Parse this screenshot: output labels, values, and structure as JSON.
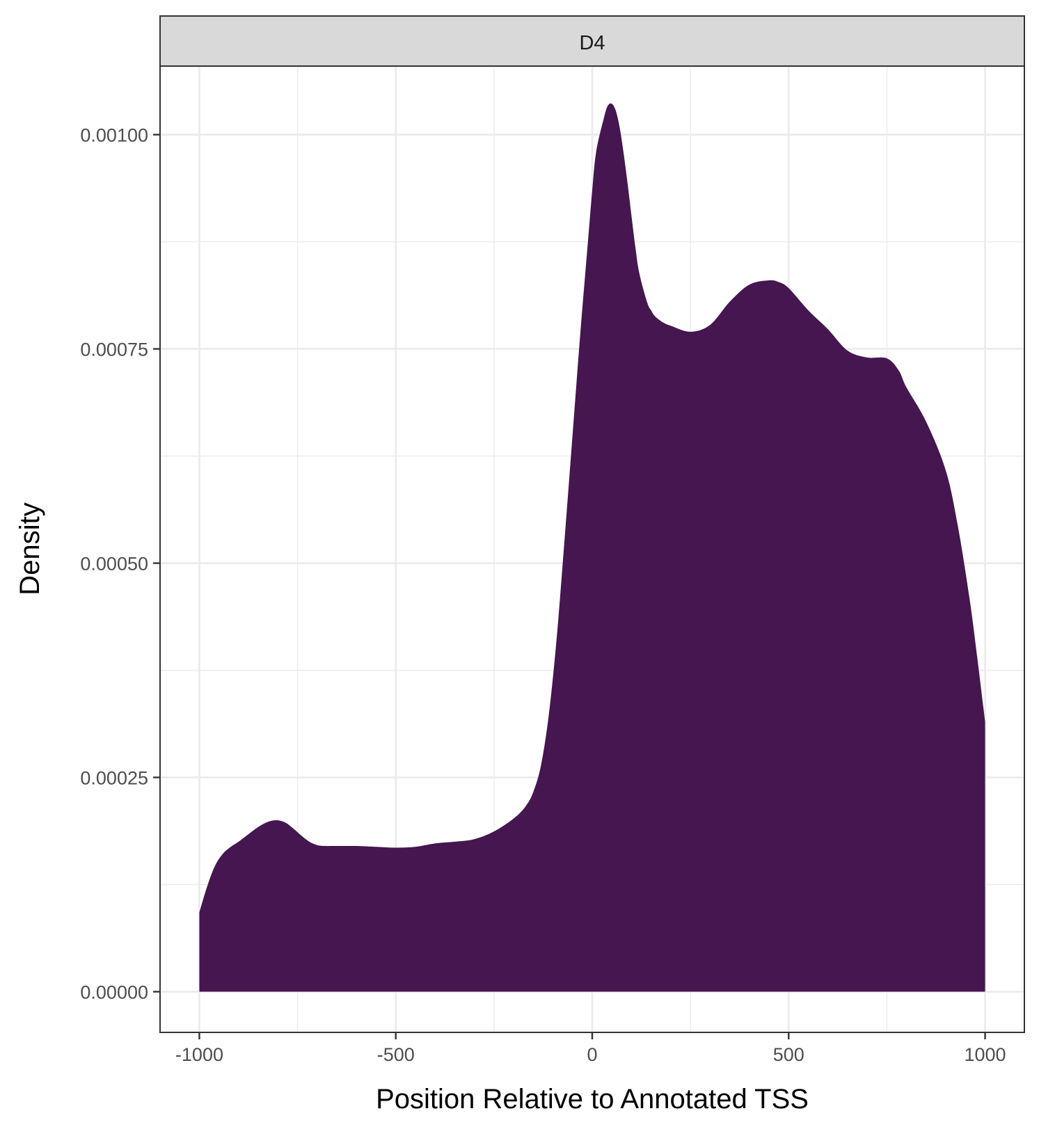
{
  "chart_data": {
    "type": "area",
    "chart_kind": "density",
    "facet_label": "D4",
    "xlabel": "Position Relative to Annotated TSS",
    "ylabel": "Density",
    "xlim": [
      -1100,
      1100
    ],
    "ylim": [
      -4.75e-05,
      0.00108
    ],
    "x_ticks": [
      {
        "value": -1000,
        "label": "-1000"
      },
      {
        "value": -500,
        "label": "-500"
      },
      {
        "value": 0,
        "label": "0"
      },
      {
        "value": 500,
        "label": "500"
      },
      {
        "value": 1000,
        "label": "1000"
      }
    ],
    "y_ticks": [
      {
        "value": 0.0,
        "label": "0.00000"
      },
      {
        "value": 0.00025,
        "label": "0.00025"
      },
      {
        "value": 0.0005,
        "label": "0.00050"
      },
      {
        "value": 0.00075,
        "label": "0.00075"
      },
      {
        "value": 0.001,
        "label": "0.00100"
      }
    ],
    "x_minor_ticks": [
      -750,
      -250,
      250,
      750
    ],
    "y_minor_ticks": [
      0.000125,
      0.000375,
      0.000625,
      0.000875
    ],
    "grid": true,
    "fill_color": "#45164f",
    "series": [
      {
        "x": [
          -1000,
          -980,
          -960,
          -940,
          -920,
          -900,
          -880,
          -860,
          -840,
          -820,
          -800,
          -780,
          -760,
          -740,
          -720,
          -700,
          -680,
          -660,
          -640,
          -620,
          -600,
          -550,
          -500,
          -450,
          -400,
          -350,
          -300,
          -250,
          -200,
          -170,
          -150,
          -130,
          -110,
          -90,
          -70,
          -50,
          -30,
          -10,
          0,
          10,
          30,
          40,
          50,
          60,
          70,
          80,
          90,
          100,
          110,
          120,
          140,
          150,
          160,
          180,
          200,
          250,
          300,
          350,
          400,
          450,
          475,
          500,
          550,
          600,
          650,
          700,
          750,
          780,
          800,
          850,
          900,
          930,
          960,
          980,
          1000
        ],
        "y": [
          9.25e-05,
          0.000123,
          0.000147,
          0.000161,
          0.000169,
          0.000175,
          0.000182,
          0.000189,
          0.000195,
          0.000199,
          0.0002,
          0.000197,
          0.00019,
          0.000182,
          0.000175,
          0.000171,
          0.00017,
          0.00017,
          0.00017,
          0.00017,
          0.00017,
          0.000169,
          0.000168,
          0.000169,
          0.000173,
          0.000175,
          0.000178,
          0.000187,
          0.000202,
          0.000216,
          0.000233,
          0.000265,
          0.000325,
          0.000415,
          0.00053,
          0.00065,
          0.00077,
          0.00088,
          0.000935,
          0.00098,
          0.00102,
          0.001034,
          0.001036,
          0.001028,
          0.001008,
          0.000978,
          0.000943,
          0.000905,
          0.000868,
          0.000838,
          0.000804,
          0.000795,
          0.000788,
          0.000781,
          0.000777,
          0.00077,
          0.000778,
          0.000805,
          0.000825,
          0.00083,
          0.000828,
          0.000821,
          0.000795,
          0.000773,
          0.000748,
          0.00074,
          0.000739,
          0.000725,
          0.000705,
          0.000665,
          0.000608,
          0.000545,
          0.00046,
          0.00039,
          0.000315
        ]
      }
    ]
  }
}
